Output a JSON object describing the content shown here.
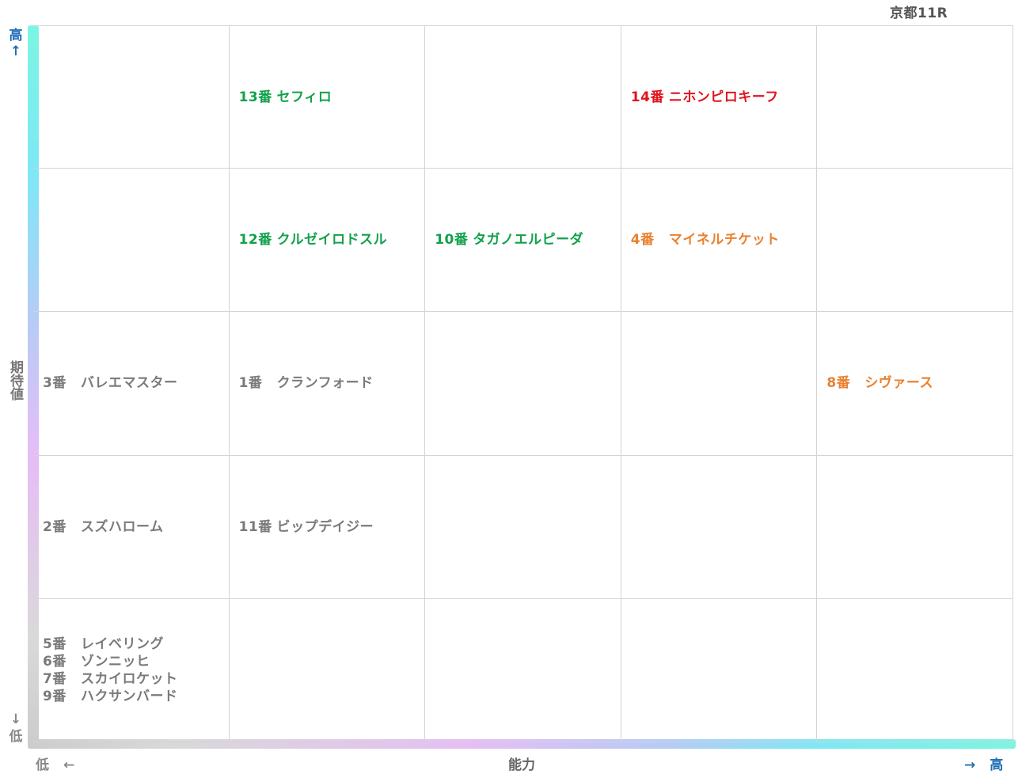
{
  "title": "京都11R",
  "axes": {
    "y_high_label": "高",
    "y_high_arrow": "↑",
    "y_low_arrow": "↓",
    "y_low_label": "低",
    "y_label": "期待値",
    "x_low_label": "低",
    "x_low_arrow": "←",
    "x_label": "能力",
    "x_high_arrow": "→",
    "x_high_label": "高"
  },
  "colors": {
    "green": "#12a14a",
    "red": "#e0141e",
    "orange": "#e9812f",
    "gray": "#7a7a7a"
  },
  "chart_data": {
    "type": "table",
    "x_label": "能力",
    "y_label": "期待値",
    "x_levels": 5,
    "y_levels": 5,
    "cells": [
      {
        "row": 0,
        "col": 0,
        "entries": []
      },
      {
        "row": 0,
        "col": 1,
        "entries": [
          {
            "num": "13番",
            "name": "セフィロ",
            "color": "green"
          }
        ]
      },
      {
        "row": 0,
        "col": 2,
        "entries": []
      },
      {
        "row": 0,
        "col": 3,
        "entries": [
          {
            "num": "14番",
            "name": "ニホンピロキーフ",
            "color": "red"
          }
        ]
      },
      {
        "row": 0,
        "col": 4,
        "entries": []
      },
      {
        "row": 1,
        "col": 0,
        "entries": []
      },
      {
        "row": 1,
        "col": 1,
        "entries": [
          {
            "num": "12番",
            "name": "クルゼイロドスル",
            "color": "green"
          }
        ]
      },
      {
        "row": 1,
        "col": 2,
        "entries": [
          {
            "num": "10番",
            "name": "タガノエルピーダ",
            "color": "green"
          }
        ]
      },
      {
        "row": 1,
        "col": 3,
        "entries": [
          {
            "num": "4番",
            "name": "マイネルチケット",
            "color": "orange"
          }
        ]
      },
      {
        "row": 1,
        "col": 4,
        "entries": []
      },
      {
        "row": 2,
        "col": 0,
        "entries": [
          {
            "num": "3番",
            "name": "バレエマスター",
            "color": "gray"
          }
        ]
      },
      {
        "row": 2,
        "col": 1,
        "entries": [
          {
            "num": "1番",
            "name": "クランフォード",
            "color": "gray"
          }
        ]
      },
      {
        "row": 2,
        "col": 2,
        "entries": []
      },
      {
        "row": 2,
        "col": 3,
        "entries": []
      },
      {
        "row": 2,
        "col": 4,
        "entries": [
          {
            "num": "8番",
            "name": "シヴァース",
            "color": "orange"
          }
        ]
      },
      {
        "row": 3,
        "col": 0,
        "entries": [
          {
            "num": "2番",
            "name": "スズハローム",
            "color": "gray"
          }
        ]
      },
      {
        "row": 3,
        "col": 1,
        "entries": [
          {
            "num": "11番",
            "name": "ビップデイジー",
            "color": "gray"
          }
        ]
      },
      {
        "row": 3,
        "col": 2,
        "entries": []
      },
      {
        "row": 3,
        "col": 3,
        "entries": []
      },
      {
        "row": 3,
        "col": 4,
        "entries": []
      },
      {
        "row": 4,
        "col": 0,
        "entries": [
          {
            "num": "5番",
            "name": "レイベリング",
            "color": "gray"
          },
          {
            "num": "6番",
            "name": "ゾンニッヒ",
            "color": "gray"
          },
          {
            "num": "7番",
            "name": "スカイロケット",
            "color": "gray"
          },
          {
            "num": "9番",
            "name": "ハクサンバード",
            "color": "gray"
          }
        ]
      },
      {
        "row": 4,
        "col": 1,
        "entries": []
      },
      {
        "row": 4,
        "col": 2,
        "entries": []
      },
      {
        "row": 4,
        "col": 3,
        "entries": []
      },
      {
        "row": 4,
        "col": 4,
        "entries": []
      }
    ]
  }
}
